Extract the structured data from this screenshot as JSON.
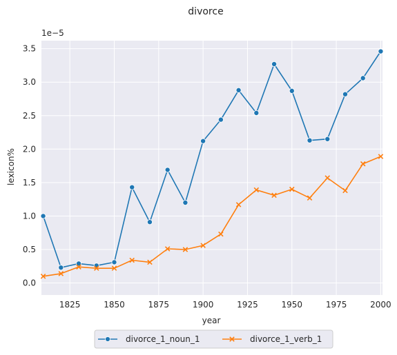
{
  "chart_data": {
    "type": "line",
    "title": "divorce",
    "xlabel": "year",
    "ylabel": "lexicon%",
    "y_multiplier_label": "1e−5",
    "xlim": [
      1809,
      2001
    ],
    "ylim": [
      -0.18,
      3.62
    ],
    "x_ticks": [
      1825,
      1850,
      1875,
      1900,
      1925,
      1950,
      1975,
      2000
    ],
    "y_ticks": [
      0.0,
      0.5,
      1.0,
      1.5,
      2.0,
      2.5,
      3.0,
      3.5
    ],
    "y_tick_labels": [
      "0.0",
      "0.5",
      "1.0",
      "1.5",
      "2.0",
      "2.5",
      "3.0",
      "3.5"
    ],
    "x": [
      1810,
      1820,
      1830,
      1840,
      1850,
      1860,
      1870,
      1880,
      1890,
      1900,
      1910,
      1920,
      1930,
      1940,
      1950,
      1960,
      1970,
      1980,
      1990,
      2000
    ],
    "series": [
      {
        "name": "divorce_1_noun_1",
        "color": "#1f77b4",
        "marker": "circle",
        "values": [
          1.0,
          0.23,
          0.29,
          0.26,
          0.31,
          1.43,
          0.91,
          1.69,
          1.2,
          2.12,
          2.44,
          2.88,
          2.54,
          3.27,
          2.87,
          2.13,
          2.15,
          2.82,
          3.06,
          3.46
        ]
      },
      {
        "name": "divorce_1_verb_1",
        "color": "#ff7f0e",
        "marker": "x",
        "values": [
          0.1,
          0.14,
          0.24,
          0.22,
          0.22,
          0.34,
          0.31,
          0.51,
          0.5,
          0.56,
          0.73,
          1.17,
          1.39,
          1.31,
          1.4,
          1.27,
          1.57,
          1.38,
          1.78,
          1.89
        ]
      }
    ],
    "grid": true,
    "background": "#eaeaf2",
    "legend_position": "bottom-center"
  }
}
